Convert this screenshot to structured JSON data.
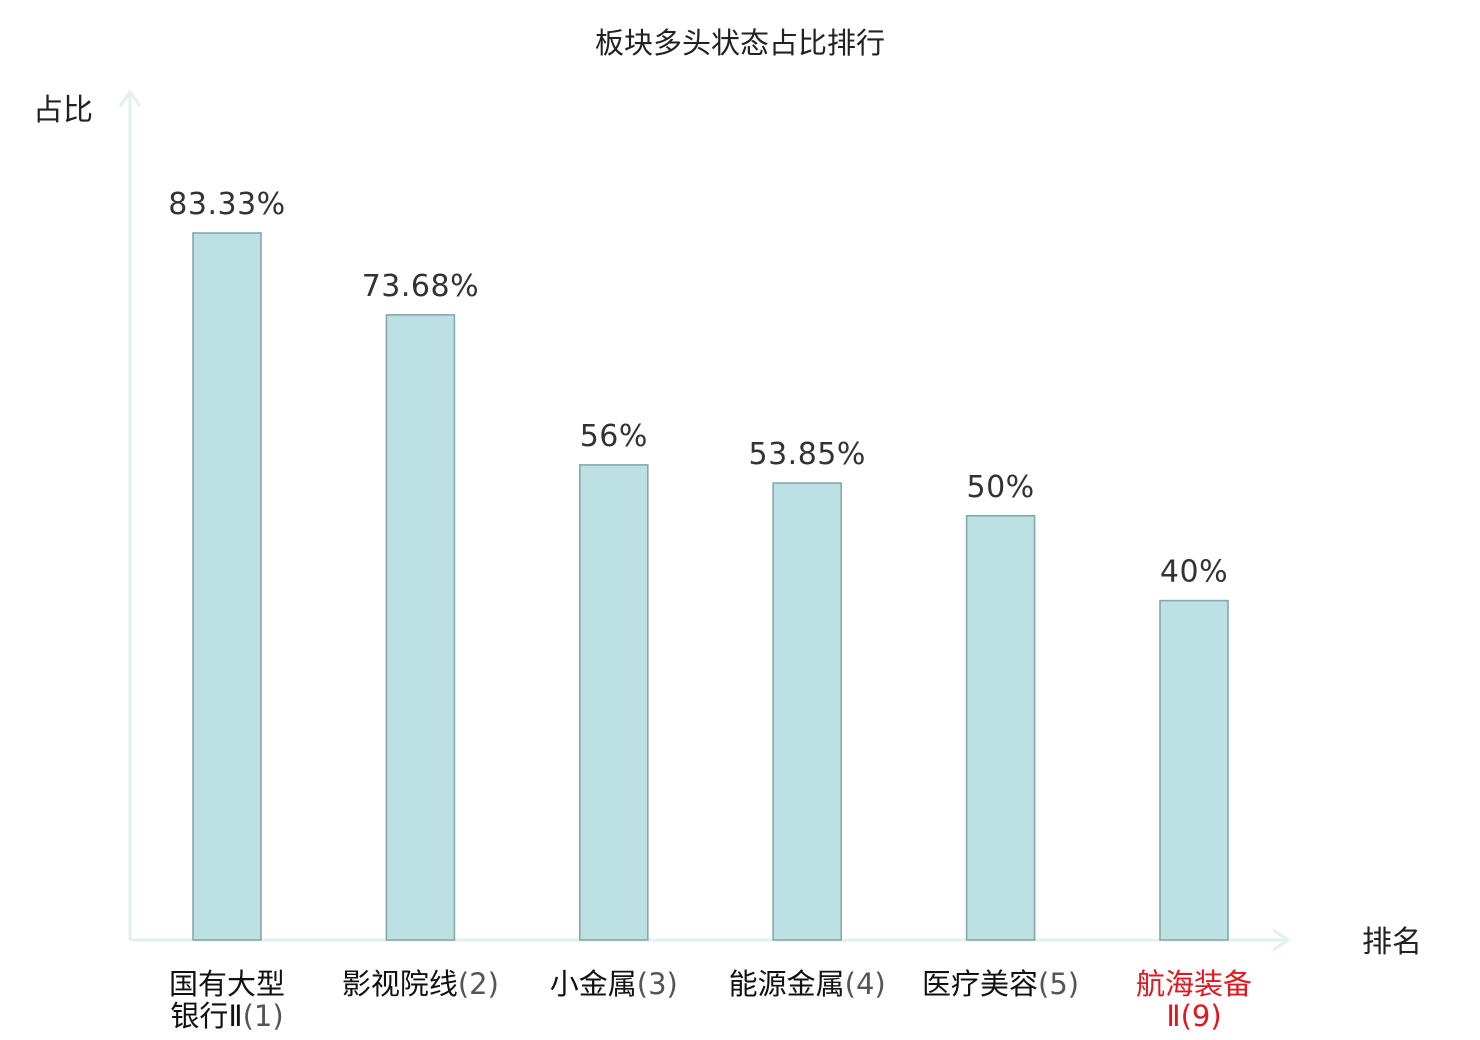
{
  "chart_data": {
    "type": "bar",
    "title": "板块多头状态占比排行",
    "ylabel": "占比",
    "xlabel": "排名",
    "categories": [
      {
        "name": "国有大型银行Ⅱ",
        "rank": "(1)",
        "lines": [
          "国有大型",
          "银行Ⅱ(1)"
        ],
        "highlight": false
      },
      {
        "name": "影视院线",
        "rank": "(2)",
        "lines": [
          "影视院线(2)"
        ],
        "highlight": false
      },
      {
        "name": "小金属",
        "rank": "(3)",
        "lines": [
          "小金属(3)"
        ],
        "highlight": false
      },
      {
        "name": "能源金属",
        "rank": "(4)",
        "lines": [
          "能源金属(4)"
        ],
        "highlight": false
      },
      {
        "name": "医疗美容",
        "rank": "(5)",
        "lines": [
          "医疗美容(5)"
        ],
        "highlight": false
      },
      {
        "name": "航海装备Ⅱ",
        "rank": "(9)",
        "lines": [
          "航海装备",
          "Ⅱ(9)"
        ],
        "highlight": true
      }
    ],
    "values": [
      83.33,
      73.68,
      56,
      53.85,
      50,
      40
    ],
    "value_labels": [
      "83.33%",
      "73.68%",
      "56%",
      "53.85%",
      "50%",
      "40%"
    ],
    "ylim": [
      0,
      100
    ],
    "grid": false,
    "legend": "none",
    "colors": {
      "bar_fill": "#bce0e3",
      "bar_stroke": "#86a8a8",
      "axis": "#e0f2ef",
      "highlight_text": "#e0171e"
    }
  }
}
